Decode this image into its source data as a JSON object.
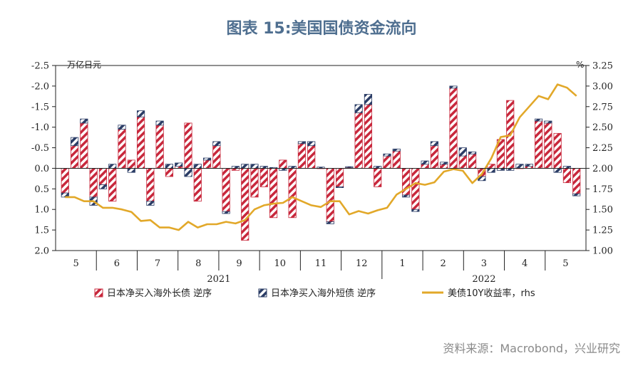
{
  "title": "图表 15:美国国债资金流向",
  "source": "资料来源：Macrobond，兴业研究",
  "colors": {
    "long_bond": "#c8283c",
    "short_bond": "#2b3d66",
    "yield": "#e2a829"
  },
  "chart_data": {
    "type": "bar",
    "left_unit": "万亿日元",
    "right_unit": "%",
    "left_axis": {
      "min": -2.5,
      "max": 2.0,
      "inverted": true,
      "ticks": [
        "-2.5",
        "-2.0",
        "-1.5",
        "-1.0",
        "-0.5",
        "0.0",
        "0.5",
        "1.0",
        "1.5",
        "2.0"
      ]
    },
    "right_axis": {
      "min": 1.0,
      "max": 3.25,
      "ticks": [
        "3.25",
        "3.00",
        "2.75",
        "2.50",
        "2.25",
        "2.00",
        "1.75",
        "1.50",
        "1.25",
        "1.00"
      ]
    },
    "month_labels": [
      "5",
      "6",
      "7",
      "8",
      "9",
      "10",
      "11",
      "12",
      "1",
      "2",
      "3",
      "4",
      "5"
    ],
    "year_labels": [
      "2021",
      "2022"
    ],
    "weeks_per_month": 4,
    "series": [
      {
        "name": "日本净买入海外长债 逆序",
        "type": "bar",
        "values": [
          0.6,
          -0.55,
          -1.1,
          0.7,
          0.4,
          0.8,
          -0.95,
          -0.2,
          -1.25,
          0.8,
          -1.05,
          0.2,
          -0.05,
          -1.1,
          0.8,
          -0.2,
          -0.55,
          1.05,
          0.05,
          1.75,
          0.7,
          0.45,
          1.2,
          -0.2,
          1.2,
          -0.6,
          -0.55,
          0.0,
          1.3,
          0.45,
          -0.02,
          -1.35,
          -1.55,
          0.45,
          -0.3,
          -0.42,
          0.65,
          1.0,
          -0.1,
          -0.55,
          -0.1,
          -1.95,
          -0.3,
          -0.35,
          0.2,
          -0.1,
          -0.7,
          -1.65,
          0.0,
          -0.05,
          -1.15,
          -1.1,
          -0.85,
          0.35,
          0.62
        ]
      },
      {
        "name": "日本净买入海外短债 逆序",
        "type": "bar",
        "values": [
          0.1,
          -0.2,
          -0.1,
          0.2,
          0.1,
          -0.1,
          -0.1,
          0.1,
          -0.15,
          0.1,
          -0.1,
          -0.1,
          -0.08,
          0.2,
          -0.1,
          -0.05,
          -0.1,
          0.05,
          -0.05,
          -0.1,
          -0.1,
          -0.05,
          -0.02,
          0.05,
          -0.05,
          -0.05,
          -0.1,
          -0.03,
          0.05,
          0.02,
          -0.02,
          -0.2,
          -0.25,
          -0.05,
          -0.05,
          -0.05,
          0.05,
          0.05,
          -0.08,
          -0.1,
          -0.05,
          -0.05,
          -0.2,
          -0.05,
          0.1,
          0.1,
          0.05,
          0.05,
          -0.1,
          -0.05,
          -0.05,
          -0.05,
          0.1,
          -0.05,
          0.05
        ]
      },
      {
        "name": "美债10Y收益率，rhs",
        "type": "line",
        "values": [
          1.65,
          1.65,
          1.6,
          1.6,
          1.52,
          1.52,
          1.5,
          1.47,
          1.36,
          1.37,
          1.28,
          1.28,
          1.25,
          1.35,
          1.28,
          1.32,
          1.32,
          1.35,
          1.33,
          1.37,
          1.5,
          1.55,
          1.57,
          1.58,
          1.65,
          1.6,
          1.55,
          1.53,
          1.6,
          1.6,
          1.44,
          1.48,
          1.45,
          1.49,
          1.52,
          1.68,
          1.75,
          1.82,
          1.8,
          1.83,
          1.96,
          1.99,
          1.97,
          1.82,
          1.93,
          2.12,
          2.38,
          2.4,
          2.62,
          2.75,
          2.88,
          2.84,
          3.02,
          2.98,
          2.88
        ]
      }
    ]
  }
}
